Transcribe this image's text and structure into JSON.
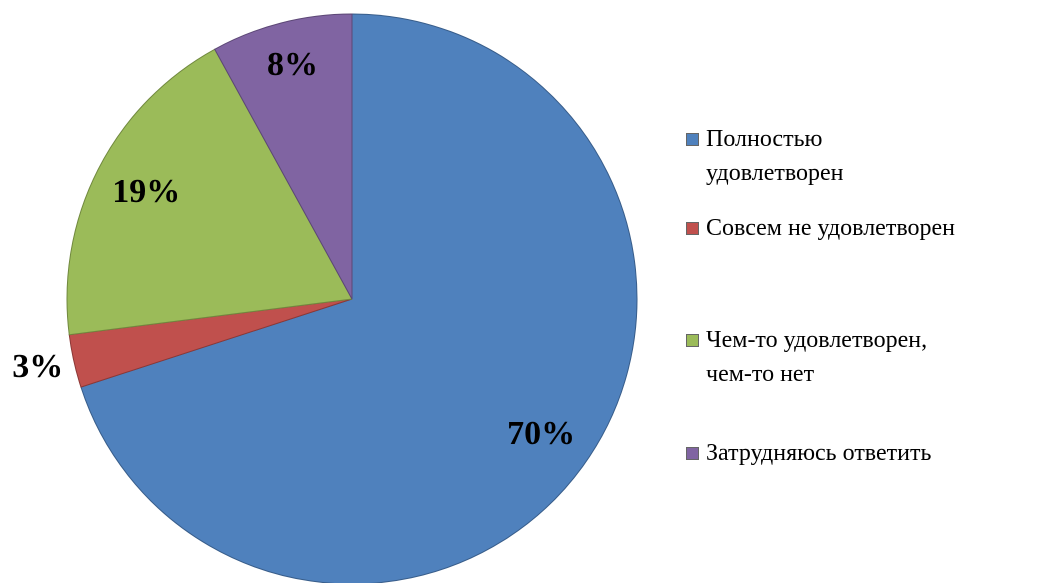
{
  "chart_data": {
    "type": "pie",
    "categories": [
      "Полностью\nудовлетворен",
      "Совсем не удовлетворен",
      "Чем-то удовлетворен,\nчем-то нет",
      "Затрудняюсь ответить"
    ],
    "values": [
      70,
      3,
      19,
      8
    ],
    "value_labels": [
      "70%",
      "3%",
      "19%",
      "8%"
    ],
    "colors": [
      "#4f81bd",
      "#c0504d",
      "#9bbb59",
      "#8064a2"
    ],
    "legend": "right"
  }
}
